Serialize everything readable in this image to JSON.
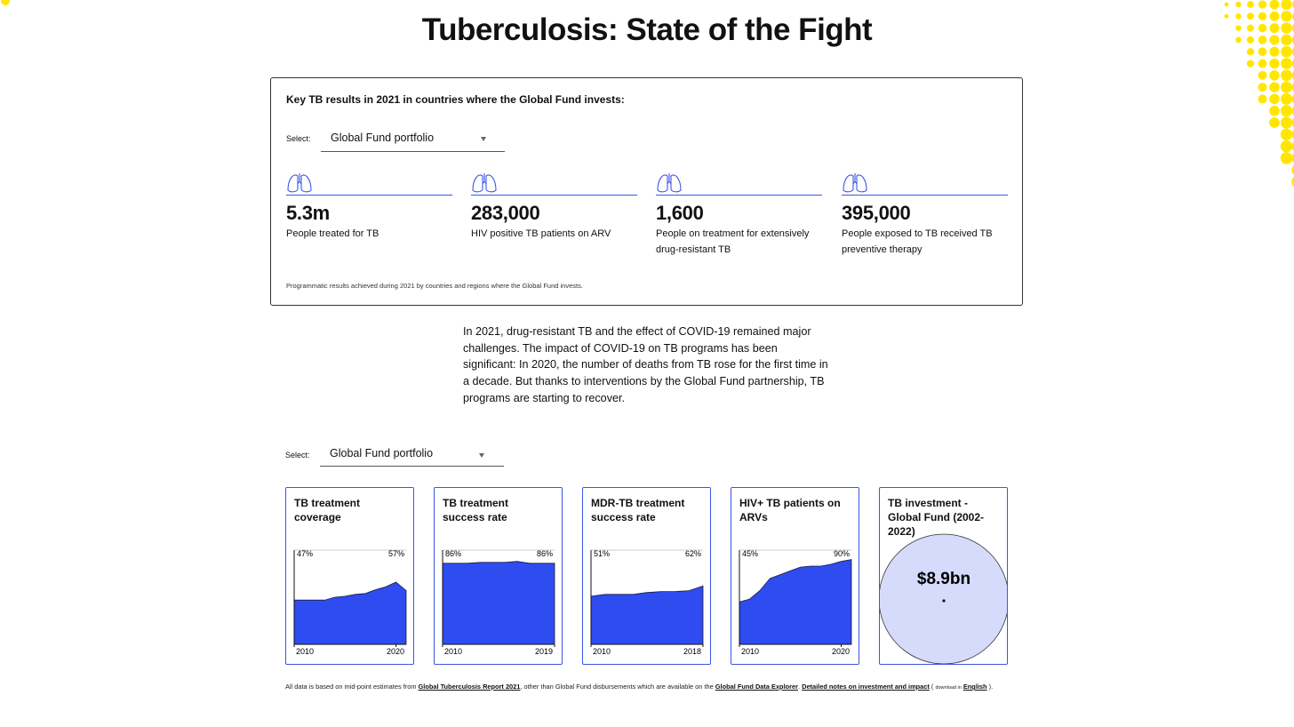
{
  "header": {
    "title": "Tuberculosis: State of the Fight"
  },
  "results": {
    "heading": "Key TB results in 2021 in countries where the Global Fund invests:",
    "select_label": "Select:",
    "select_value": "Global Fund portfolio",
    "stats": [
      {
        "value": "5.3m",
        "label": "People treated for TB"
      },
      {
        "value": "283,000",
        "label": "HIV positive TB patients on ARV"
      },
      {
        "value": "1,600",
        "label": "People on treatment for extensively drug-resistant TB"
      },
      {
        "value": "395,000",
        "label": "People exposed to TB received TB preventive therapy"
      }
    ],
    "note": "Programmatic results achieved during 2021 by countries and regions where the Global Fund invests."
  },
  "intro": "In 2021, drug-resistant TB and the effect of COVID-19 remained major challenges. The impact of COVID-19 on TB programs has been significant: In 2020, the number of deaths from TB rose for the first time in a decade. But thanks to interventions by the Global Fund partnership, TB programs are starting to recover.",
  "trends": {
    "select_label": "Select:",
    "select_value": "Global Fund portfolio",
    "cards": [
      {
        "title": "TB treatment coverage",
        "color": "#2e4cf0",
        "x": [
          2010,
          2011,
          2012,
          2013,
          2014,
          2015,
          2016,
          2017,
          2018,
          2019,
          2020,
          2021
        ],
        "values": [
          47,
          47,
          47,
          47,
          50,
          51,
          53,
          54,
          58,
          61,
          66,
          57
        ],
        "value_labels": [
          "47%",
          null,
          null,
          null,
          null,
          null,
          null,
          null,
          null,
          null,
          null,
          "57%"
        ],
        "xlim": [
          2010,
          2021
        ],
        "ylim": [
          0,
          100
        ],
        "xticks": [
          2010,
          2020
        ]
      },
      {
        "title": "TB treatment success rate",
        "color": "#2e4cf0",
        "x": [
          2010,
          2011,
          2012,
          2013,
          2014,
          2015,
          2016,
          2017,
          2018,
          2019
        ],
        "values": [
          86,
          86,
          86,
          87,
          87,
          87,
          88,
          86,
          86,
          86
        ],
        "value_labels": [
          "86%",
          null,
          null,
          null,
          null,
          null,
          null,
          null,
          null,
          "86%"
        ],
        "xlim": [
          2010,
          2019
        ],
        "ylim": [
          0,
          100
        ],
        "xticks": [
          2010,
          2019
        ]
      },
      {
        "title": "MDR-TB treatment success rate",
        "color": "#2e4cf0",
        "x": [
          2010,
          2011,
          2012,
          2013,
          2014,
          2015,
          2016,
          2017,
          2018
        ],
        "values": [
          51,
          53,
          53,
          53,
          55,
          56,
          56,
          57,
          62
        ],
        "value_labels": [
          "51%",
          null,
          null,
          null,
          null,
          null,
          null,
          null,
          "62%"
        ],
        "xlim": [
          2010,
          2018
        ],
        "ylim": [
          0,
          100
        ],
        "xticks": [
          2010,
          2018
        ]
      },
      {
        "title": "HIV+ TB patients on ARVs",
        "color": "#2e4cf0",
        "x": [
          2010,
          2011,
          2012,
          2013,
          2014,
          2015,
          2016,
          2017,
          2018,
          2019,
          2020,
          2021
        ],
        "values": [
          45,
          48,
          57,
          70,
          74,
          78,
          82,
          83,
          83,
          85,
          88,
          90
        ],
        "value_labels": [
          "45%",
          null,
          null,
          null,
          null,
          null,
          null,
          null,
          null,
          null,
          null,
          "90%"
        ],
        "xlim": [
          2010,
          2021
        ],
        "ylim": [
          0,
          100
        ],
        "xticks": [
          2010,
          2020
        ]
      },
      {
        "title": "TB investment - Global Fund (2002-2022)",
        "amount": "$8.9bn"
      }
    ]
  },
  "footnote": {
    "text_1": "All data is based on mid-point estimates from ",
    "link_1": "Global Tuberculosis Report 2021",
    "text_2": ", other than Global Fund disbursements which are available on the ",
    "link_2": "Global Fund Data Explorer",
    "text_3": ". ",
    "link_3": "Detailed notes on investment and impact",
    "text_4": " ( ",
    "small": "download in",
    "link_4": "English",
    "text_5": " )."
  }
}
